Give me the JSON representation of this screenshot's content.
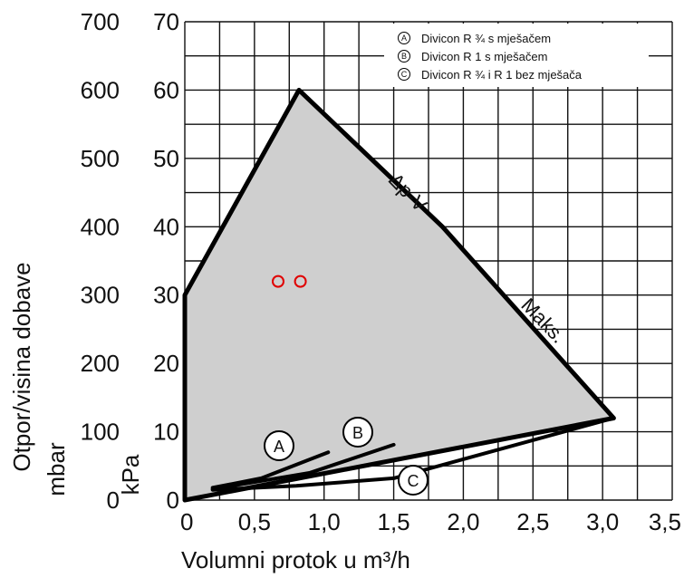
{
  "chart_data": {
    "type": "area",
    "xlabel": "Volumni protok u m³/h",
    "ylabel_mbar": "Otpor/visina dobave",
    "ylabel_mbar_unit": "mbar",
    "ylabel_kpa": "kPa",
    "xlim": [
      0,
      3.5
    ],
    "ylim_kpa": [
      0,
      70
    ],
    "ylim_mbar": [
      0,
      700
    ],
    "grid": true,
    "x_ticks": [
      "0",
      "0,5",
      "1,0",
      "1,5",
      "2,0",
      "2,5",
      "3,0",
      "3,5"
    ],
    "y_ticks_mbar": [
      "0",
      "100",
      "200",
      "300",
      "400",
      "500",
      "600",
      "700"
    ],
    "y_ticks_kpa": [
      "0",
      "10",
      "20",
      "30",
      "40",
      "50",
      "60",
      "70"
    ],
    "legend": [
      {
        "marker": "A",
        "label": "Divicon R ¾ s mješačem"
      },
      {
        "marker": "B",
        "label": "Divicon R 1 s mješačem"
      },
      {
        "marker": "C",
        "label": "Divicon R ¾ i R 1 bez mješača"
      }
    ],
    "envelope": {
      "x": [
        0,
        0.82,
        1.85,
        3.08,
        0
      ],
      "y": [
        30,
        60,
        40,
        12,
        0
      ]
    },
    "envelope_labels": [
      {
        "text": "Δp-V"
      },
      {
        "text": "Maks."
      }
    ],
    "series": [
      {
        "name": "A",
        "x": [
          0.2,
          0.55,
          1.03
        ],
        "y": [
          1.8,
          3.2,
          7.0
        ]
      },
      {
        "name": "B",
        "x": [
          0.2,
          0.9,
          1.5
        ],
        "y": [
          1.6,
          4.0,
          8.1
        ]
      },
      {
        "name": "C",
        "x": [
          0.2,
          0.8,
          1.5,
          3.08
        ],
        "y": [
          1.5,
          2.1,
          3.2,
          12
        ]
      }
    ],
    "operating_points": [
      {
        "x": 0.67,
        "y": 32
      },
      {
        "x": 0.83,
        "y": 32
      }
    ],
    "colors": {
      "fill": "#cfcfcf",
      "grid": "#111111",
      "curve": "#000000",
      "point": "#e00000"
    }
  }
}
